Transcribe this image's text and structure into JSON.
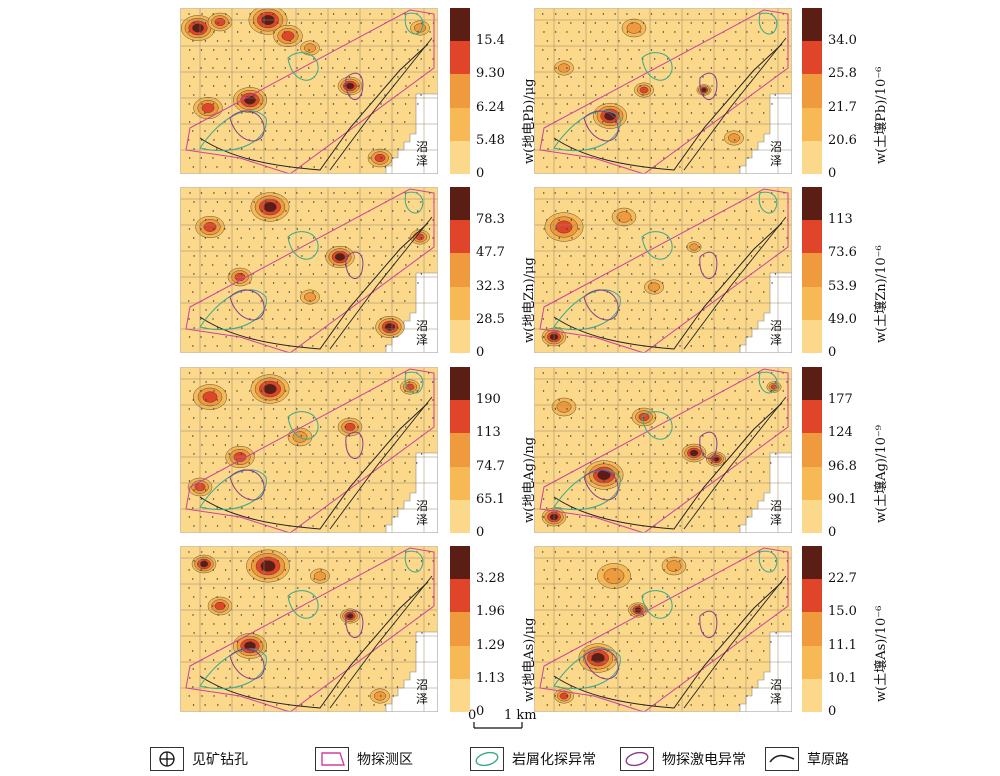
{
  "panels": [
    {
      "title": "w(地电Pb)/μg",
      "ticks": [
        "15.4",
        "9.30",
        "6.24",
        "5.48",
        "0"
      ]
    },
    {
      "title": "w(土壤Pb)/10⁻⁶",
      "ticks": [
        "34.0",
        "25.8",
        "21.7",
        "20.6",
        "0"
      ]
    },
    {
      "title": "w(地电Zn)/μg",
      "ticks": [
        "78.3",
        "47.7",
        "32.3",
        "28.5",
        "0"
      ]
    },
    {
      "title": "w(土壤Zn)/10⁻⁶",
      "ticks": [
        "113",
        "73.6",
        "53.9",
        "49.0",
        "0"
      ]
    },
    {
      "title": "w(地电Ag)/ng",
      "ticks": [
        "190",
        "113",
        "74.7",
        "65.1",
        "0"
      ]
    },
    {
      "title": "w(土壤Ag)/10⁻⁹",
      "ticks": [
        "177",
        "124",
        "96.8",
        "90.1",
        "0"
      ]
    },
    {
      "title": "w(地电As)/μg",
      "ticks": [
        "3.28",
        "1.96",
        "1.29",
        "1.13",
        "0"
      ]
    },
    {
      "title": "w(土壤As)/10⁻⁶",
      "ticks": [
        "22.7",
        "15.0",
        "11.1",
        "10.1",
        "0"
      ]
    }
  ],
  "lake_label": [
    "沼",
    "泽"
  ],
  "colors": {
    "level0": "#fbd88a",
    "level1": "#f7b955",
    "level2": "#f09a3e",
    "level3": "#e0452a",
    "level4": "#5a1e14",
    "survey_area": "#d0409a",
    "weathering_anomaly": "#3aa98b",
    "ip_anomaly": "#8a3a8a",
    "road": "#222222"
  },
  "scalebar": {
    "zero": "0",
    "one": "1 km"
  },
  "legend": [
    {
      "icon": "drill-hole-icon",
      "label": "见矿钻孔"
    },
    {
      "icon": "survey-area-icon",
      "label": "物探测区"
    },
    {
      "icon": "weathering-anomaly-icon",
      "label": "岩屑化探异常"
    },
    {
      "icon": "ip-anomaly-icon",
      "label": "物探激电异常"
    },
    {
      "icon": "road-icon",
      "label": "草原路"
    }
  ]
}
